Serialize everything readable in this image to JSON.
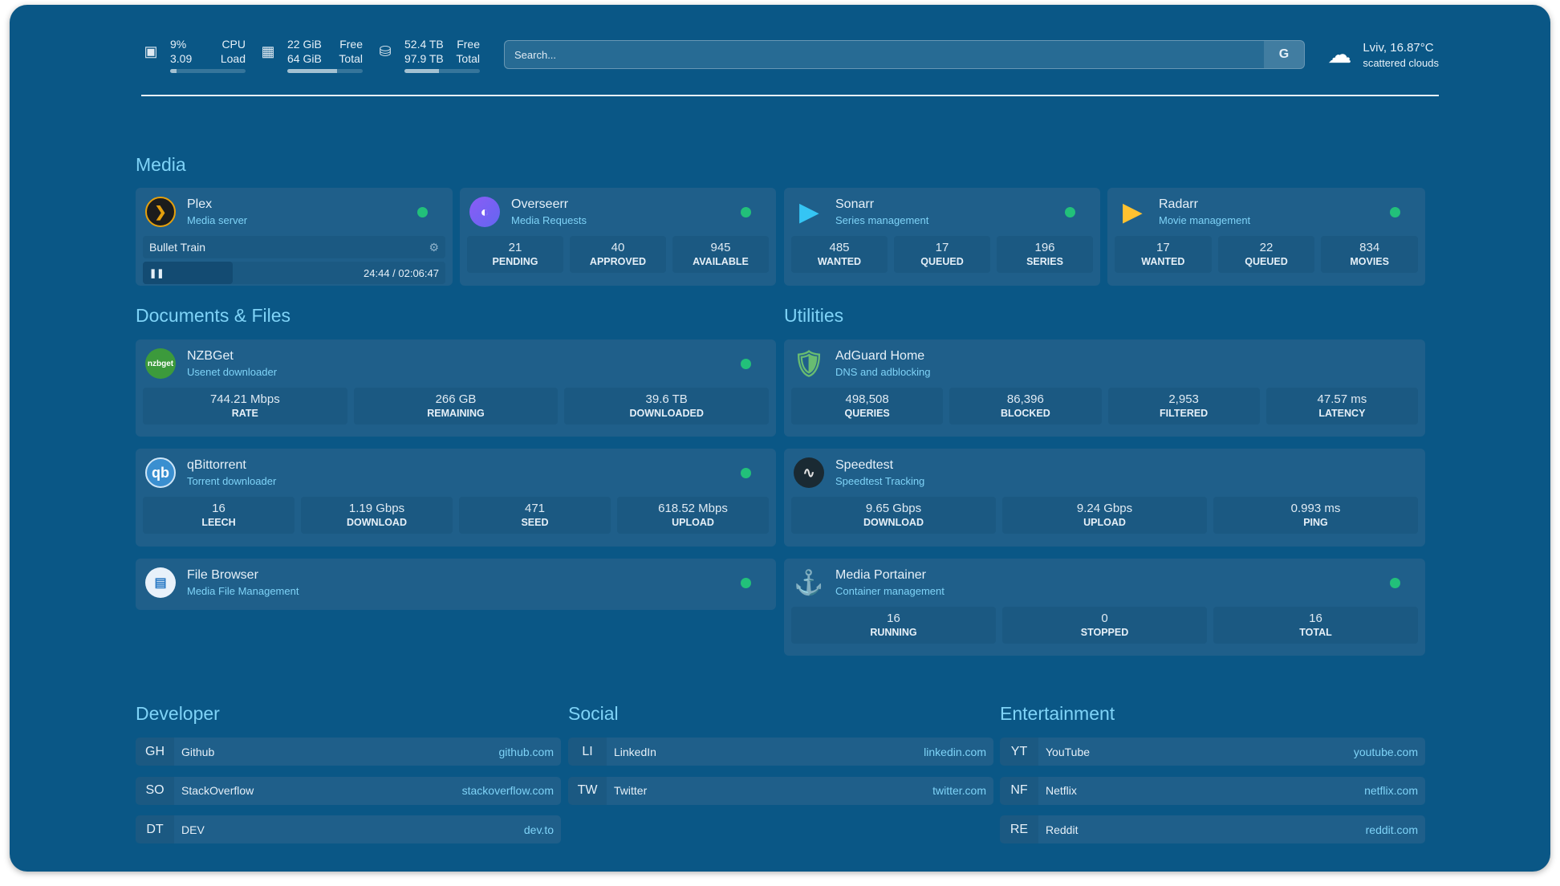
{
  "resources": [
    {
      "icon": "cpu-icon",
      "v1": "9%",
      "v2": "3.09",
      "l1": "CPU",
      "l2": "Load",
      "percent": 9
    },
    {
      "icon": "memory-icon",
      "v1": "22 GiB",
      "v2": "64 GiB",
      "l1": "Free",
      "l2": "Total",
      "percent": 66
    },
    {
      "icon": "disk-icon",
      "v1": "52.4 TB",
      "v2": "97.9 TB",
      "l1": "Free",
      "l2": "Total",
      "percent": 46
    }
  ],
  "search": {
    "placeholder": "Search...",
    "provider": "G"
  },
  "weather": {
    "icon": "cloud-sun-icon",
    "location": "Lviv, 16.87°C",
    "condition": "scattered clouds"
  },
  "sections": {
    "media": "Media",
    "docs": "Documents & Files",
    "utilities": "Utilities",
    "developer": "Developer",
    "social": "Social",
    "entertainment": "Entertainment"
  },
  "status_color": "#22c07a",
  "plex": {
    "name": "Plex",
    "desc": "Media server",
    "title": "Bullet Train",
    "time": "24:44 / 02:06:47",
    "progress_percent": 19.5
  },
  "overseerr": {
    "name": "Overseerr",
    "desc": "Media Requests",
    "stats": [
      {
        "v": "21",
        "l": "PENDING"
      },
      {
        "v": "40",
        "l": "APPROVED"
      },
      {
        "v": "945",
        "l": "AVAILABLE"
      }
    ]
  },
  "sonarr": {
    "name": "Sonarr",
    "desc": "Series management",
    "stats": [
      {
        "v": "485",
        "l": "WANTED"
      },
      {
        "v": "17",
        "l": "QUEUED"
      },
      {
        "v": "196",
        "l": "SERIES"
      }
    ]
  },
  "radarr": {
    "name": "Radarr",
    "desc": "Movie management",
    "stats": [
      {
        "v": "17",
        "l": "WANTED"
      },
      {
        "v": "22",
        "l": "QUEUED"
      },
      {
        "v": "834",
        "l": "MOVIES"
      }
    ]
  },
  "nzbget": {
    "name": "NZBGet",
    "desc": "Usenet downloader",
    "logo": "nzbget",
    "stats": [
      {
        "v": "744.21 Mbps",
        "l": "RATE"
      },
      {
        "v": "266 GB",
        "l": "REMAINING"
      },
      {
        "v": "39.6 TB",
        "l": "DOWNLOADED"
      }
    ]
  },
  "qbit": {
    "name": "qBittorrent",
    "desc": "Torrent downloader",
    "logo": "qb",
    "stats": [
      {
        "v": "16",
        "l": "LEECH"
      },
      {
        "v": "1.19 Gbps",
        "l": "DOWNLOAD"
      },
      {
        "v": "471",
        "l": "SEED"
      },
      {
        "v": "618.52 Mbps",
        "l": "UPLOAD"
      }
    ]
  },
  "filebrowser": {
    "name": "File Browser",
    "desc": "Media File Management"
  },
  "adguard": {
    "name": "AdGuard Home",
    "desc": "DNS and adblocking",
    "stats": [
      {
        "v": "498,508",
        "l": "QUERIES"
      },
      {
        "v": "86,396",
        "l": "BLOCKED"
      },
      {
        "v": "2,953",
        "l": "FILTERED"
      },
      {
        "v": "47.57 ms",
        "l": "LATENCY"
      }
    ]
  },
  "speedtest": {
    "name": "Speedtest",
    "desc": "Speedtest Tracking",
    "stats": [
      {
        "v": "9.65 Gbps",
        "l": "DOWNLOAD"
      },
      {
        "v": "9.24 Gbps",
        "l": "UPLOAD"
      },
      {
        "v": "0.993 ms",
        "l": "PING"
      }
    ]
  },
  "portainer": {
    "name": "Media Portainer",
    "desc": "Container management",
    "stats": [
      {
        "v": "16",
        "l": "RUNNING"
      },
      {
        "v": "0",
        "l": "STOPPED"
      },
      {
        "v": "16",
        "l": "TOTAL"
      }
    ]
  },
  "bookmarks": {
    "developer": [
      {
        "a": "GH",
        "n": "Github",
        "u": "github.com"
      },
      {
        "a": "SO",
        "n": "StackOverflow",
        "u": "stackoverflow.com"
      },
      {
        "a": "DT",
        "n": "DEV",
        "u": "dev.to"
      }
    ],
    "social": [
      {
        "a": "LI",
        "n": "LinkedIn",
        "u": "linkedin.com"
      },
      {
        "a": "TW",
        "n": "Twitter",
        "u": "twitter.com"
      }
    ],
    "entertainment": [
      {
        "a": "YT",
        "n": "YouTube",
        "u": "youtube.com"
      },
      {
        "a": "NF",
        "n": "Netflix",
        "u": "netflix.com"
      },
      {
        "a": "RE",
        "n": "Reddit",
        "u": "reddit.com"
      }
    ]
  }
}
